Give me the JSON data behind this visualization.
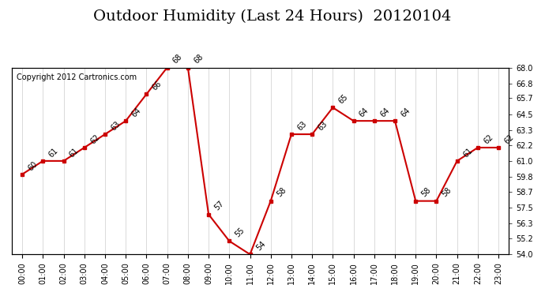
{
  "title": "Outdoor Humidity (Last 24 Hours)  20120104",
  "copyright_text": "Copyright 2012 Cartronics.com",
  "x_labels": [
    "00:00",
    "01:00",
    "02:00",
    "03:00",
    "04:00",
    "05:00",
    "06:00",
    "07:00",
    "08:00",
    "09:00",
    "10:00",
    "11:00",
    "12:00",
    "13:00",
    "14:00",
    "15:00",
    "16:00",
    "17:00",
    "18:00",
    "19:00",
    "20:00",
    "21:00",
    "22:00",
    "23:00"
  ],
  "x_values": [
    0,
    1,
    2,
    3,
    4,
    5,
    6,
    7,
    8,
    9,
    10,
    11,
    12,
    13,
    14,
    15,
    16,
    17,
    18,
    19,
    20,
    21,
    22,
    23
  ],
  "y_values": [
    60,
    61,
    61,
    62,
    63,
    64,
    66,
    68,
    68,
    57,
    55,
    54,
    58,
    63,
    63,
    65,
    64,
    64,
    64,
    58,
    58,
    61,
    62,
    62
  ],
  "y_labels_right": [
    "54.0",
    "55.2",
    "56.3",
    "57.5",
    "58.7",
    "59.8",
    "61.0",
    "62.2",
    "63.3",
    "64.5",
    "65.7",
    "66.8",
    "68.0"
  ],
  "y_right_values": [
    54.0,
    55.2,
    56.3,
    57.5,
    58.7,
    59.8,
    61.0,
    62.2,
    63.3,
    64.5,
    65.7,
    66.8,
    68.0
  ],
  "ylim_min": 54.0,
  "ylim_max": 68.0,
  "line_color": "#cc0000",
  "marker_color": "#cc0000",
  "background_color": "#ffffff",
  "plot_bg_color": "#ffffff",
  "grid_color": "#cccccc",
  "title_fontsize": 14,
  "annotation_fontsize": 7,
  "copyright_fontsize": 7,
  "point_annotations": [
    60,
    61,
    61,
    62,
    63,
    64,
    66,
    68,
    68,
    57,
    55,
    54,
    58,
    63,
    63,
    65,
    64,
    64,
    64,
    58,
    58,
    61,
    62,
    62
  ]
}
